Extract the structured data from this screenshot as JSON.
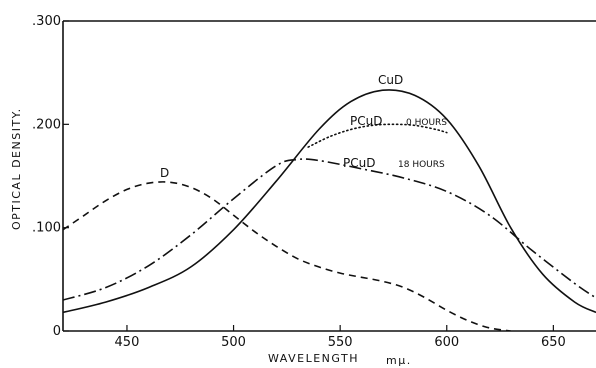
{
  "chart_data": {
    "type": "line",
    "title": "",
    "xlabel": "WAVELENGTH",
    "xlabel_unit": "mμ.",
    "ylabel": "OPTICAL DENSITY.",
    "xlim": [
      420,
      670
    ],
    "ylim": [
      0,
      0.3
    ],
    "x_ticks": [
      {
        "value": 450,
        "label": "450"
      },
      {
        "value": 500,
        "label": "500"
      },
      {
        "value": 550,
        "label": "550"
      },
      {
        "value": 600,
        "label": "600"
      },
      {
        "value": 650,
        "label": "650"
      }
    ],
    "y_ticks": [
      {
        "value": 0,
        "label": "0"
      },
      {
        "value": 0.1,
        "label": ".100"
      },
      {
        "value": 0.2,
        "label": ".200"
      },
      {
        "value": 0.3,
        "label": ".300"
      }
    ],
    "grid": false,
    "series": [
      {
        "name": "CuD",
        "label": "CuD",
        "style": "solid",
        "x": [
          420,
          440,
          460,
          480,
          500,
          520,
          540,
          555,
          570,
          585,
          600,
          615,
          630,
          645,
          660,
          670
        ],
        "y": [
          0.018,
          0.028,
          0.042,
          0.062,
          0.098,
          0.145,
          0.195,
          0.222,
          0.233,
          0.228,
          0.205,
          0.16,
          0.1,
          0.055,
          0.028,
          0.018
        ]
      },
      {
        "name": "PCuD 0 HOURS",
        "label": "PCuD",
        "label_suffix": "0 HOURS",
        "style": "dotted",
        "x": [
          535,
          545,
          555,
          565,
          575,
          585,
          595,
          600
        ],
        "y": [
          0.178,
          0.188,
          0.195,
          0.199,
          0.2,
          0.199,
          0.195,
          0.192
        ]
      },
      {
        "name": "D",
        "label": "D",
        "style": "dashed",
        "x": [
          420,
          430,
          440,
          450,
          460,
          470,
          480,
          490,
          500,
          510,
          520,
          530,
          540,
          550,
          560,
          570,
          580,
          590,
          600,
          610,
          620,
          630
        ],
        "y": [
          0.098,
          0.112,
          0.126,
          0.137,
          0.143,
          0.144,
          0.139,
          0.128,
          0.112,
          0.096,
          0.082,
          0.07,
          0.062,
          0.056,
          0.052,
          0.048,
          0.042,
          0.032,
          0.02,
          0.01,
          0.003,
          0.0
        ]
      },
      {
        "name": "PCuD 18 HOURS",
        "label": "PCuD",
        "label_suffix": "18 HOURS",
        "style": "dashdot",
        "x": [
          420,
          440,
          460,
          480,
          500,
          520,
          530,
          540,
          560,
          580,
          600,
          620,
          640,
          660,
          670
        ],
        "y": [
          0.03,
          0.042,
          0.063,
          0.093,
          0.128,
          0.16,
          0.166,
          0.165,
          0.157,
          0.148,
          0.135,
          0.112,
          0.078,
          0.046,
          0.032
        ]
      }
    ]
  }
}
